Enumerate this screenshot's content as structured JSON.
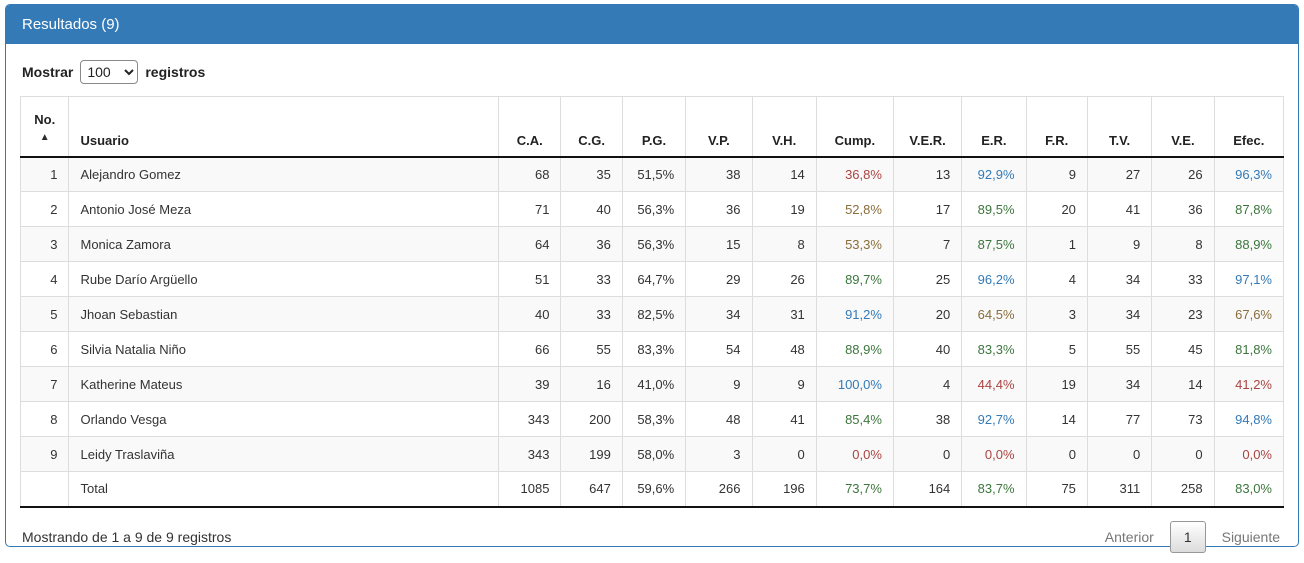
{
  "panel": {
    "title": "Resultados (9)"
  },
  "length_menu": {
    "label_before": "Mostrar",
    "label_after": "registros",
    "selected": "100",
    "options": [
      "100"
    ]
  },
  "colors": {
    "panel_accent": "#337ab7",
    "danger": "#a94442",
    "warning": "#8a6d3b",
    "success": "#3c763d",
    "info": "#337ab7"
  },
  "icons": {
    "sort_asc": "▲"
  },
  "table": {
    "columns": [
      {
        "label": "No.",
        "sorted": "asc"
      },
      {
        "label": "Usuario"
      },
      {
        "label": "C.A."
      },
      {
        "label": "C.G."
      },
      {
        "label": "P.G."
      },
      {
        "label": "V.P."
      },
      {
        "label": "V.H."
      },
      {
        "label": "Cump."
      },
      {
        "label": "V.E.R."
      },
      {
        "label": "E.R."
      },
      {
        "label": "F.R."
      },
      {
        "label": "T.V."
      },
      {
        "label": "V.E."
      },
      {
        "label": "Efec."
      }
    ],
    "rows": [
      {
        "cells": [
          {
            "t": "1"
          },
          {
            "t": "Alejandro Gomez"
          },
          {
            "t": "68"
          },
          {
            "t": "35"
          },
          {
            "t": "51,5%"
          },
          {
            "t": "38"
          },
          {
            "t": "14"
          },
          {
            "t": "36,8%",
            "c": "danger"
          },
          {
            "t": "13"
          },
          {
            "t": "92,9%",
            "c": "info"
          },
          {
            "t": "9"
          },
          {
            "t": "27"
          },
          {
            "t": "26"
          },
          {
            "t": "96,3%",
            "c": "info"
          }
        ]
      },
      {
        "cells": [
          {
            "t": "2"
          },
          {
            "t": "Antonio José Meza"
          },
          {
            "t": "71"
          },
          {
            "t": "40"
          },
          {
            "t": "56,3%"
          },
          {
            "t": "36"
          },
          {
            "t": "19"
          },
          {
            "t": "52,8%",
            "c": "warning"
          },
          {
            "t": "17"
          },
          {
            "t": "89,5%",
            "c": "success"
          },
          {
            "t": "20"
          },
          {
            "t": "41"
          },
          {
            "t": "36"
          },
          {
            "t": "87,8%",
            "c": "success"
          }
        ]
      },
      {
        "cells": [
          {
            "t": "3"
          },
          {
            "t": "Monica Zamora"
          },
          {
            "t": "64"
          },
          {
            "t": "36"
          },
          {
            "t": "56,3%"
          },
          {
            "t": "15"
          },
          {
            "t": "8"
          },
          {
            "t": "53,3%",
            "c": "warning"
          },
          {
            "t": "7"
          },
          {
            "t": "87,5%",
            "c": "success"
          },
          {
            "t": "1"
          },
          {
            "t": "9"
          },
          {
            "t": "8"
          },
          {
            "t": "88,9%",
            "c": "success"
          }
        ]
      },
      {
        "cells": [
          {
            "t": "4"
          },
          {
            "t": "Rube Darío Argüello"
          },
          {
            "t": "51"
          },
          {
            "t": "33"
          },
          {
            "t": "64,7%"
          },
          {
            "t": "29"
          },
          {
            "t": "26"
          },
          {
            "t": "89,7%",
            "c": "success"
          },
          {
            "t": "25"
          },
          {
            "t": "96,2%",
            "c": "info"
          },
          {
            "t": "4"
          },
          {
            "t": "34"
          },
          {
            "t": "33"
          },
          {
            "t": "97,1%",
            "c": "info"
          }
        ]
      },
      {
        "cells": [
          {
            "t": "5"
          },
          {
            "t": "Jhoan Sebastian"
          },
          {
            "t": "40"
          },
          {
            "t": "33"
          },
          {
            "t": "82,5%"
          },
          {
            "t": "34"
          },
          {
            "t": "31"
          },
          {
            "t": "91,2%",
            "c": "info"
          },
          {
            "t": "20"
          },
          {
            "t": "64,5%",
            "c": "warning"
          },
          {
            "t": "3"
          },
          {
            "t": "34"
          },
          {
            "t": "23"
          },
          {
            "t": "67,6%",
            "c": "warning"
          }
        ]
      },
      {
        "cells": [
          {
            "t": "6"
          },
          {
            "t": "Silvia Natalia Niño"
          },
          {
            "t": "66"
          },
          {
            "t": "55"
          },
          {
            "t": "83,3%"
          },
          {
            "t": "54"
          },
          {
            "t": "48"
          },
          {
            "t": "88,9%",
            "c": "success"
          },
          {
            "t": "40"
          },
          {
            "t": "83,3%",
            "c": "success"
          },
          {
            "t": "5"
          },
          {
            "t": "55"
          },
          {
            "t": "45"
          },
          {
            "t": "81,8%",
            "c": "success"
          }
        ]
      },
      {
        "cells": [
          {
            "t": "7"
          },
          {
            "t": "Katherine Mateus"
          },
          {
            "t": "39"
          },
          {
            "t": "16"
          },
          {
            "t": "41,0%"
          },
          {
            "t": "9"
          },
          {
            "t": "9"
          },
          {
            "t": "100,0%",
            "c": "info"
          },
          {
            "t": "4"
          },
          {
            "t": "44,4%",
            "c": "danger"
          },
          {
            "t": "19"
          },
          {
            "t": "34"
          },
          {
            "t": "14"
          },
          {
            "t": "41,2%",
            "c": "danger"
          }
        ]
      },
      {
        "cells": [
          {
            "t": "8"
          },
          {
            "t": "Orlando Vesga"
          },
          {
            "t": "343"
          },
          {
            "t": "200"
          },
          {
            "t": "58,3%"
          },
          {
            "t": "48"
          },
          {
            "t": "41"
          },
          {
            "t": "85,4%",
            "c": "success"
          },
          {
            "t": "38"
          },
          {
            "t": "92,7%",
            "c": "info"
          },
          {
            "t": "14"
          },
          {
            "t": "77"
          },
          {
            "t": "73"
          },
          {
            "t": "94,8%",
            "c": "info"
          }
        ]
      },
      {
        "cells": [
          {
            "t": "9"
          },
          {
            "t": "Leidy Traslaviña"
          },
          {
            "t": "343"
          },
          {
            "t": "199"
          },
          {
            "t": "58,0%"
          },
          {
            "t": "3"
          },
          {
            "t": "0"
          },
          {
            "t": "0,0%",
            "c": "danger"
          },
          {
            "t": "0"
          },
          {
            "t": "0,0%",
            "c": "danger"
          },
          {
            "t": "0"
          },
          {
            "t": "0"
          },
          {
            "t": "0"
          },
          {
            "t": "0,0%",
            "c": "danger"
          }
        ]
      }
    ],
    "total_row": {
      "cells": [
        {
          "t": ""
        },
        {
          "t": "Total"
        },
        {
          "t": "1085"
        },
        {
          "t": "647"
        },
        {
          "t": "59,6%"
        },
        {
          "t": "266"
        },
        {
          "t": "196"
        },
        {
          "t": "73,7%",
          "c": "success"
        },
        {
          "t": "164"
        },
        {
          "t": "83,7%",
          "c": "success"
        },
        {
          "t": "75"
        },
        {
          "t": "311"
        },
        {
          "t": "258"
        },
        {
          "t": "83,0%",
          "c": "success"
        }
      ]
    }
  },
  "footer": {
    "info": "Mostrando de 1 a 9 de 9 registros",
    "pagination": {
      "previous": "Anterior",
      "current": "1",
      "next": "Siguiente"
    }
  }
}
